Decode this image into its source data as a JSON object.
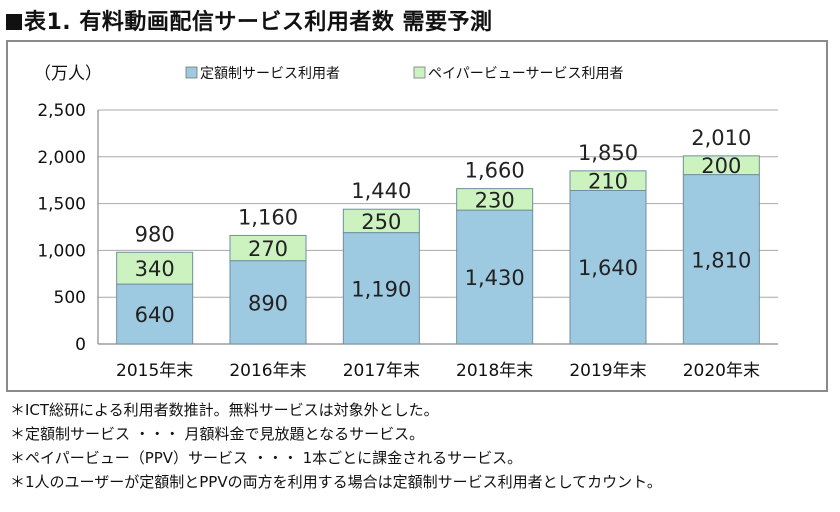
{
  "title": "表1. 有料動画配信サービス利用者数 需要予測",
  "chart_data": {
    "type": "bar",
    "stacked": true,
    "unit_label": "（万人）",
    "categories": [
      "2015年末",
      "2016年末",
      "2017年末",
      "2018年末",
      "2019年末",
      "2020年末"
    ],
    "series": [
      {
        "name": "定額制サービス利用者",
        "values": [
          640,
          890,
          1190,
          1430,
          1640,
          1810
        ],
        "color": "#9ecae1",
        "labels": [
          "640",
          "890",
          "1,190",
          "1,430",
          "1,640",
          "1,810"
        ]
      },
      {
        "name": "ペイパービューサービス利用者",
        "values": [
          340,
          270,
          250,
          230,
          210,
          200
        ],
        "color": "#ccf2c0",
        "labels": [
          "340",
          "270",
          "250",
          "230",
          "210",
          "200"
        ]
      }
    ],
    "totals": [
      "980",
      "1,160",
      "1,440",
      "1,660",
      "1,850",
      "2,010"
    ],
    "y_ticks": [
      "0",
      "500",
      "1,000",
      "1,500",
      "2,000",
      "2,500"
    ],
    "ylim": [
      0,
      2500
    ],
    "grid": true,
    "legend": "top"
  },
  "notes": [
    "＊ICT総研による利用者数推計。無料サービスは対象外とした。",
    "＊定額制サービス ・・・  月額料金で見放題となるサービス。",
    "＊ペイパービュー（PPV）サービス ・・・  1本ごとに課金されるサービス。",
    "＊1人のユーザーが定額制とPPVの両方を利用する場合は定額制サービス利用者としてカウント。"
  ]
}
